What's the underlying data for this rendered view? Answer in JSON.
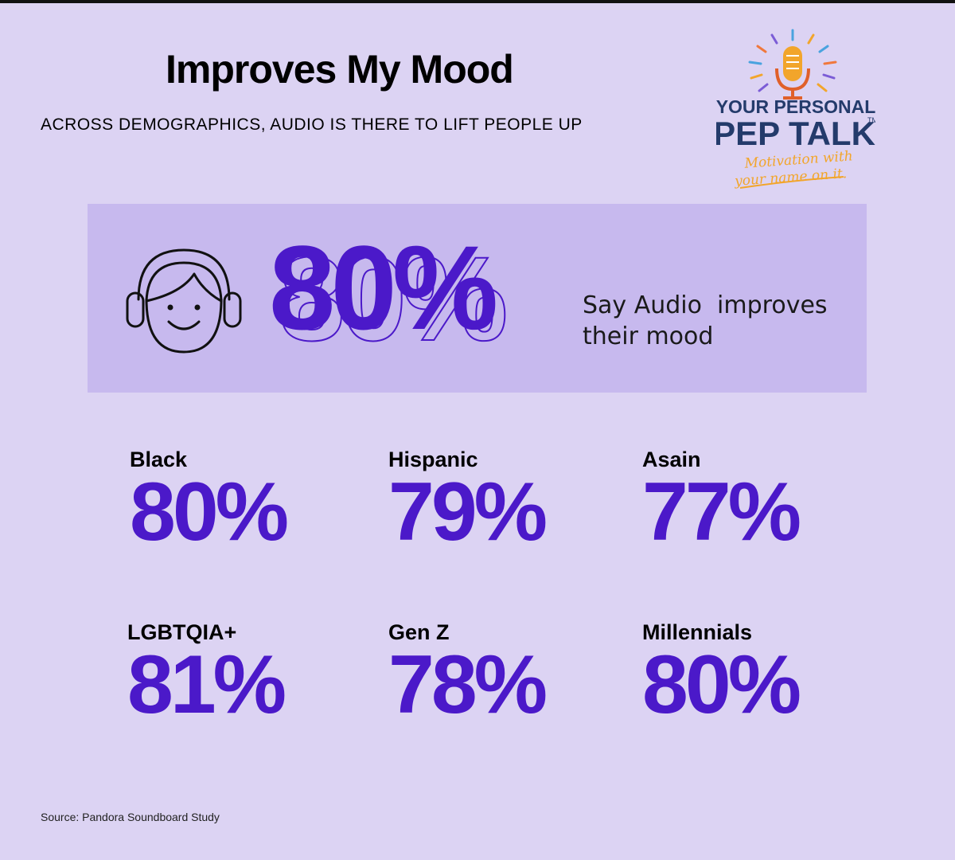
{
  "header": {
    "title": "Improves My Mood",
    "subtitle": "ACROSS DEMOGRAPHICS, AUDIO IS THERE TO LIFT PEOPLE UP"
  },
  "logo": {
    "line1": "YOUR PERSONAL",
    "line2": "PEP TALK",
    "trademark": "TM",
    "tagline1": "Motivation with",
    "tagline2": "your name on it.",
    "icon": "microphone-icon"
  },
  "hero": {
    "icon": "headphones-face-icon",
    "value": "80%",
    "caption_line1": "Say Audio  improves",
    "caption_line2": "their mood"
  },
  "stats": [
    {
      "label": "Black",
      "value": "80%"
    },
    {
      "label": "Hispanic",
      "value": "79%"
    },
    {
      "label": "Asain",
      "value": "77%"
    },
    {
      "label": "LGBTQIA+",
      "value": "81%"
    },
    {
      "label": "Gen Z",
      "value": "78%"
    },
    {
      "label": "Millennials",
      "value": "80%"
    }
  ],
  "footer": {
    "source": "Source: Pandora Soundboard Study"
  },
  "colors": {
    "background": "#dcd3f3",
    "panel": "#c7b9ee",
    "accent": "#4b19c9",
    "logo_navy": "#243b6b",
    "logo_orange": "#f2a52b"
  }
}
